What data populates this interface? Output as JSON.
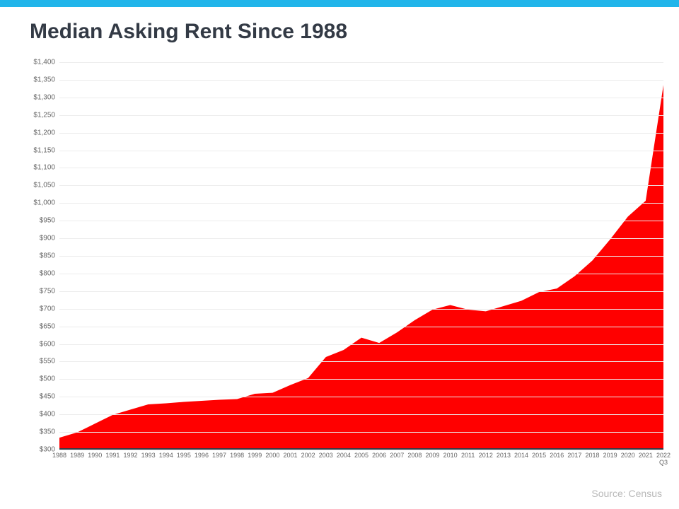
{
  "accent_color": "#21b5ea",
  "title": {
    "text": "Median Asking Rent Since 1988",
    "color": "#333a45",
    "fontsize": 30
  },
  "chart": {
    "type": "area",
    "fill_color": "#ff0000",
    "background_color": "#ffffff",
    "grid_color": "#ececec",
    "axis_color": "#333a45",
    "ylim": [
      300,
      1400
    ],
    "ytick_step": 50,
    "y_prefix": "$",
    "label_fontsize": 10,
    "categories": [
      "1988",
      "1989",
      "1990",
      "1991",
      "1992",
      "1993",
      "1994",
      "1995",
      "1996",
      "1997",
      "1998",
      "1999",
      "2000",
      "2001",
      "2002",
      "2003",
      "2004",
      "2005",
      "2006",
      "2007",
      "2008",
      "2009",
      "2010",
      "2011",
      "2012",
      "2013",
      "2014",
      "2015",
      "2016",
      "2017",
      "2018",
      "2019",
      "2020",
      "2021",
      "2022\nQ3"
    ],
    "values": [
      330,
      345,
      370,
      395,
      410,
      425,
      428,
      432,
      435,
      438,
      440,
      455,
      458,
      480,
      500,
      560,
      580,
      615,
      600,
      630,
      665,
      695,
      708,
      695,
      690,
      705,
      720,
      745,
      755,
      790,
      835,
      895,
      960,
      1005,
      1335
    ]
  },
  "source": {
    "text": "Source: Census",
    "color": "#b8b8b8",
    "fontsize": 14
  }
}
